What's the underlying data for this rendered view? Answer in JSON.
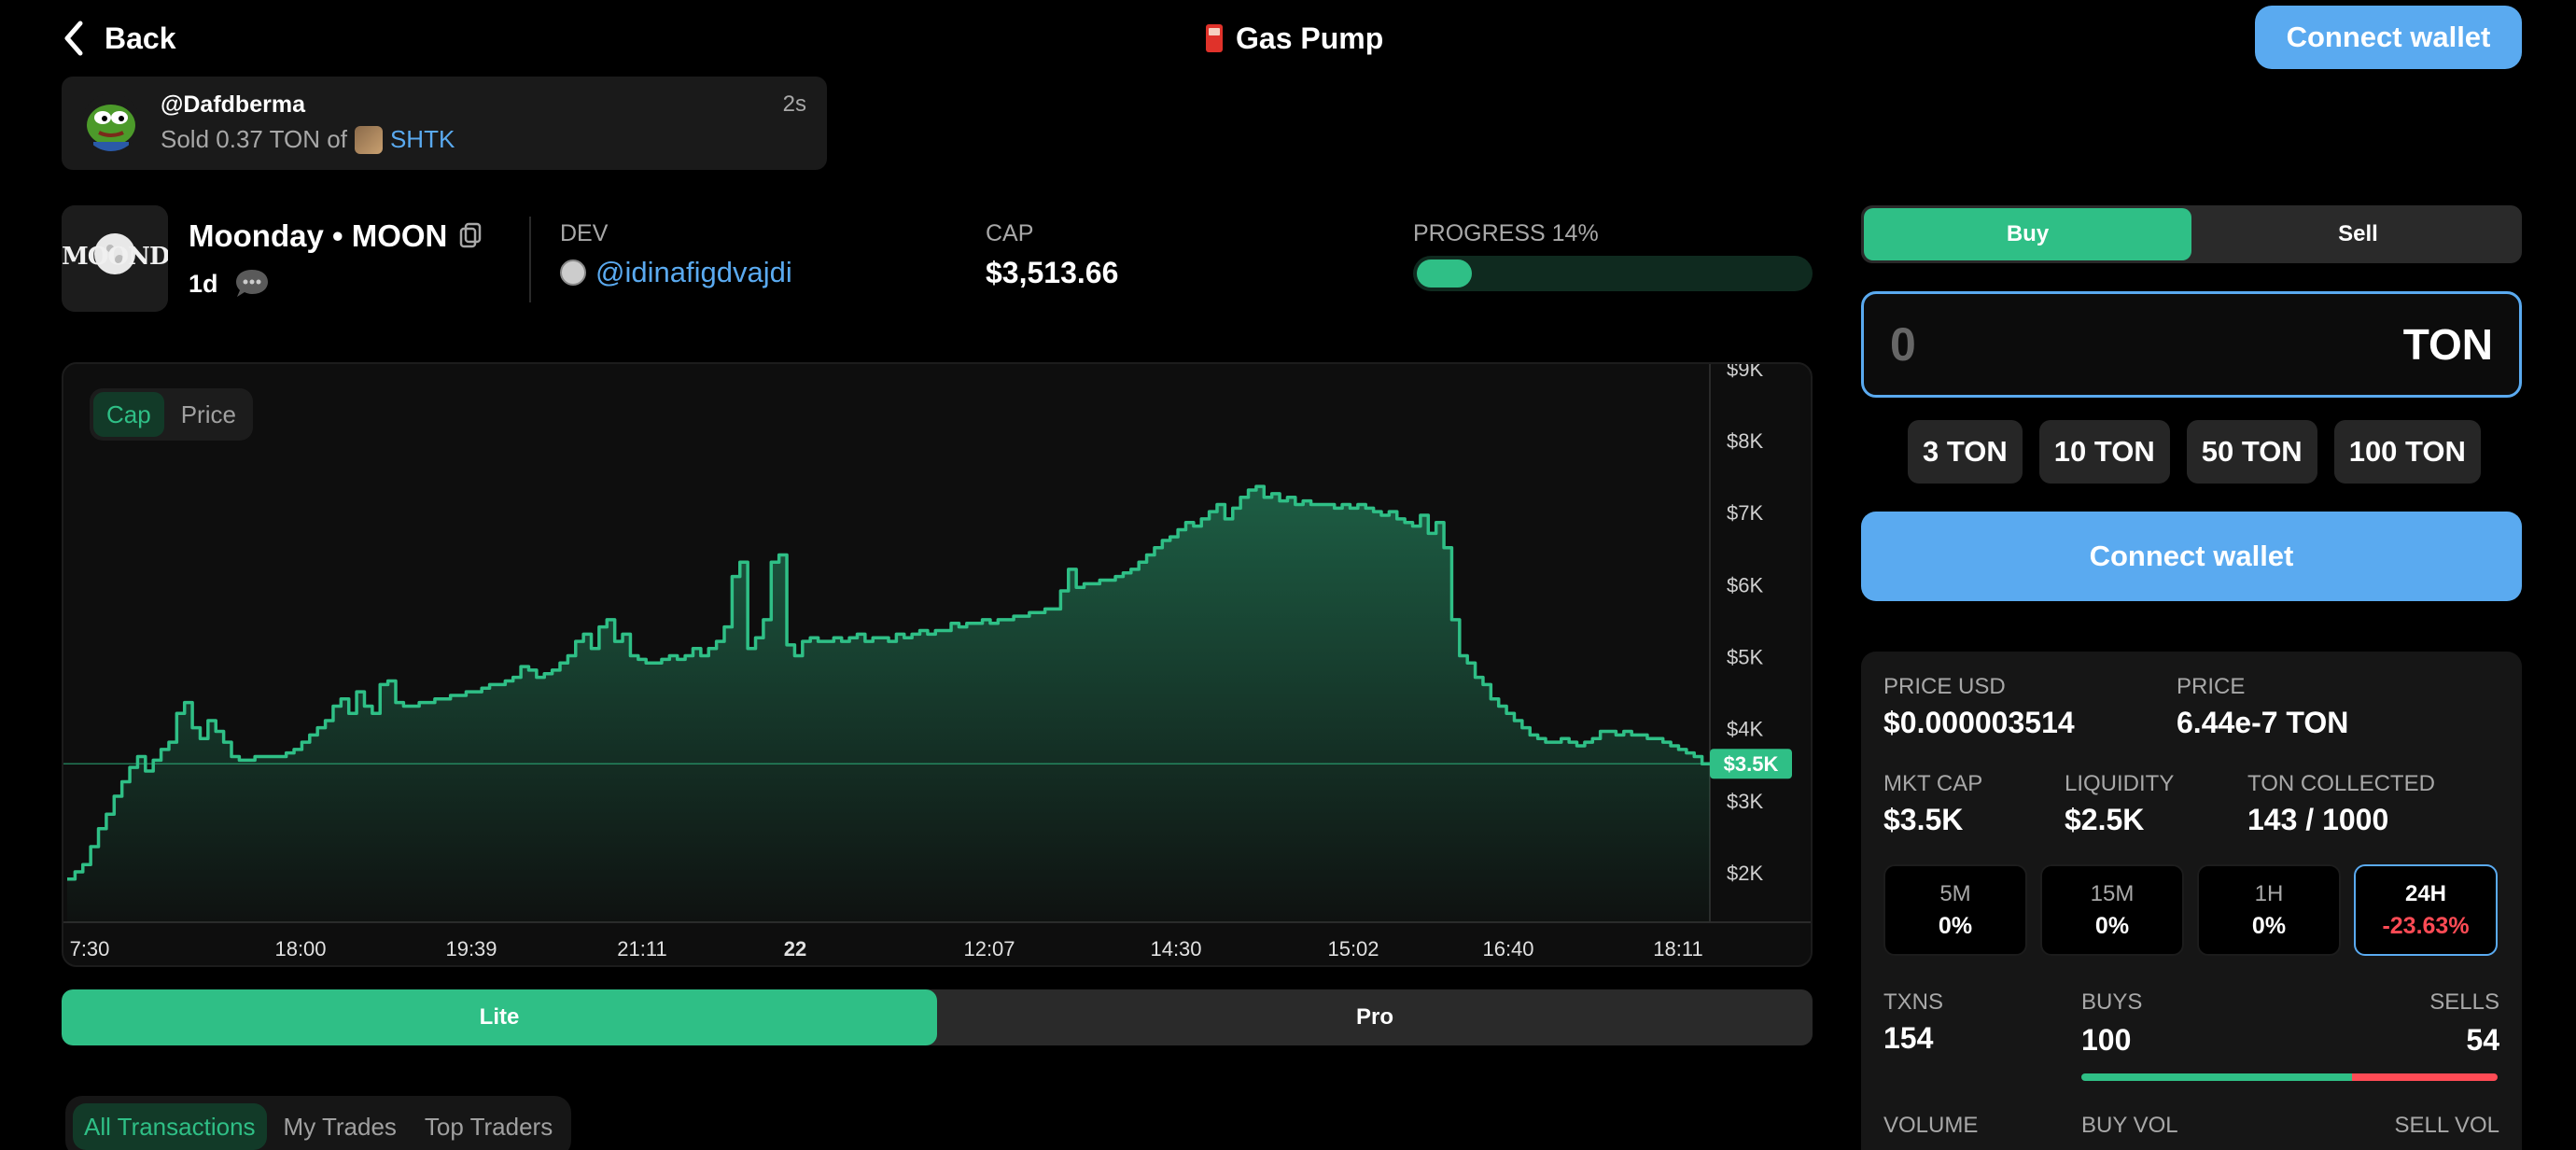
{
  "header": {
    "back_label": "Back",
    "app_title": "Gas Pump",
    "connect_label": "Connect wallet"
  },
  "notification": {
    "user": "@Dafdberma",
    "action": "Sold 0.37 TON of",
    "token": "SHTK",
    "time": "2s"
  },
  "token": {
    "logo_text": "MOONDAY",
    "name": "Moonday • MOON",
    "age": "1d",
    "dev_label": "DEV",
    "dev_handle": "@idinafigdvajdi",
    "cap_label": "CAP",
    "cap_value": "$3,513.66",
    "progress_label": "PROGRESS 14%",
    "progress": 0.14
  },
  "chart_toggle": {
    "cap": "Cap",
    "price": "Price"
  },
  "chart_data": {
    "type": "area",
    "y_unit": "$K",
    "yticks": [
      "$9K",
      "$8K",
      "$7K",
      "$6K",
      "$5K",
      "$4K",
      "$3K",
      "$2K"
    ],
    "ytick_values": [
      9,
      8,
      7,
      6,
      5,
      4,
      3,
      2
    ],
    "ylim": [
      1.3,
      9.05
    ],
    "xticks": [
      "7:30",
      "18:00",
      "19:39",
      "21:11",
      "22",
      "12:07",
      "14:30",
      "15:02",
      "16:40",
      "18:11"
    ],
    "current_label": "$3.5K",
    "current_value": 3.5,
    "grid": false,
    "color": "#2fbf86",
    "values": [
      1.9,
      2.0,
      2.1,
      2.35,
      2.6,
      2.8,
      3.05,
      3.25,
      3.45,
      3.6,
      3.4,
      3.55,
      3.7,
      3.8,
      4.2,
      4.35,
      4.0,
      3.85,
      4.1,
      3.95,
      3.8,
      3.6,
      3.55,
      3.55,
      3.6,
      3.6,
      3.6,
      3.6,
      3.65,
      3.7,
      3.8,
      3.9,
      4.0,
      4.1,
      4.3,
      4.4,
      4.2,
      4.5,
      4.3,
      4.2,
      4.6,
      4.65,
      4.35,
      4.3,
      4.3,
      4.35,
      4.35,
      4.4,
      4.4,
      4.45,
      4.45,
      4.5,
      4.5,
      4.55,
      4.6,
      4.6,
      4.65,
      4.7,
      4.85,
      4.8,
      4.7,
      4.75,
      4.8,
      4.9,
      5.0,
      5.2,
      5.3,
      5.1,
      5.4,
      5.5,
      5.2,
      5.3,
      5.0,
      4.95,
      4.9,
      4.9,
      4.95,
      5.0,
      4.95,
      5.0,
      5.1,
      5.0,
      5.1,
      5.2,
      5.4,
      6.1,
      6.3,
      5.1,
      5.25,
      5.5,
      6.3,
      6.4,
      5.15,
      5.0,
      5.2,
      5.25,
      5.2,
      5.2,
      5.25,
      5.2,
      5.25,
      5.3,
      5.2,
      5.25,
      5.25,
      5.2,
      5.3,
      5.25,
      5.3,
      5.35,
      5.3,
      5.35,
      5.35,
      5.45,
      5.4,
      5.45,
      5.45,
      5.5,
      5.45,
      5.5,
      5.5,
      5.55,
      5.55,
      5.6,
      5.6,
      5.65,
      5.65,
      5.9,
      6.2,
      5.95,
      6.0,
      6.0,
      6.05,
      6.05,
      6.1,
      6.15,
      6.2,
      6.3,
      6.4,
      6.5,
      6.6,
      6.65,
      6.75,
      6.85,
      6.8,
      6.9,
      7.0,
      7.1,
      6.9,
      7.05,
      7.2,
      7.3,
      7.35,
      7.2,
      7.25,
      7.15,
      7.2,
      7.1,
      7.15,
      7.1,
      7.1,
      7.1,
      7.05,
      7.1,
      7.05,
      7.1,
      7.05,
      7.0,
      6.95,
      7.0,
      6.9,
      6.85,
      6.8,
      6.95,
      6.7,
      6.85,
      6.5,
      5.5,
      5.0,
      4.9,
      4.7,
      4.6,
      4.4,
      4.3,
      4.2,
      4.1,
      4.0,
      3.9,
      3.85,
      3.8,
      3.8,
      3.85,
      3.8,
      3.75,
      3.8,
      3.85,
      3.95,
      3.95,
      3.9,
      3.95,
      3.9,
      3.9,
      3.85,
      3.85,
      3.8,
      3.75,
      3.7,
      3.65,
      3.6,
      3.5,
      3.5
    ]
  },
  "mode_tabs": {
    "lite": "Lite",
    "pro": "Pro"
  },
  "tx_tabs": [
    "All Transactions",
    "My Trades",
    "Top Traders"
  ],
  "trade": {
    "buy": "Buy",
    "sell": "Sell",
    "amount": "0",
    "unit": "TON",
    "quick": [
      "3 TON",
      "10 TON",
      "50 TON",
      "100 TON"
    ],
    "connect_label": "Connect wallet"
  },
  "stats": {
    "price_usd_label": "PRICE USD",
    "price_usd": "$0.000003514",
    "price_label": "PRICE",
    "price": "6.44e-7 TON",
    "mktcap_label": "MKT CAP",
    "mktcap": "$3.5K",
    "liquidity_label": "LIQUIDITY",
    "liquidity": "$2.5K",
    "collected_label": "TON COLLECTED",
    "collected": "143 / 1000",
    "timeframes": [
      {
        "label": "5M",
        "value": "0%"
      },
      {
        "label": "15M",
        "value": "0%"
      },
      {
        "label": "1H",
        "value": "0%"
      },
      {
        "label": "24H",
        "value": "-23.63%"
      }
    ],
    "txns_label": "TXNS",
    "txns": "154",
    "buys_label": "BUYS",
    "buys": "100",
    "sells_label": "SELLS",
    "sells": "54",
    "buy_share": 0.65,
    "volume_label": "VOLUME",
    "buy_vol_label": "BUY VOL",
    "sell_vol_label": "SELL VOL"
  },
  "colors": {
    "accent_green": "#2fbf86",
    "accent_blue": "#5aaaf0",
    "negative": "#ff4b55"
  }
}
